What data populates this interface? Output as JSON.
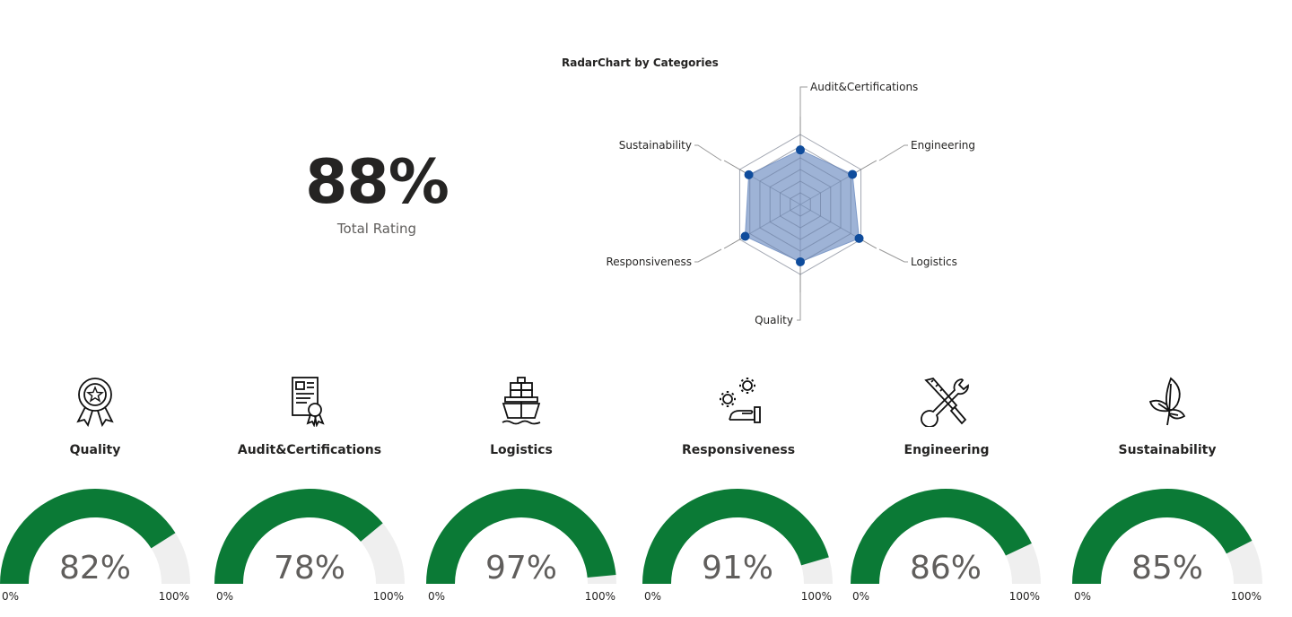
{
  "kpi": {
    "value": "88%",
    "label": "Total Rating"
  },
  "radar": {
    "title": "RadarChart by Categories",
    "axes": [
      "Audit&Certifications",
      "Engineering",
      "Logistics",
      "Quality",
      "Responsiveness",
      "Sustainability"
    ],
    "values": [
      78,
      86,
      97,
      82,
      91,
      85
    ],
    "max": 100,
    "rings": 6,
    "fill_color": "#7E9AC8",
    "point_color": "#0F4C9C"
  },
  "chart_data": [
    {
      "type": "radar",
      "title": "RadarChart by Categories",
      "categories": [
        "Audit&Certifications",
        "Engineering",
        "Logistics",
        "Quality",
        "Responsiveness",
        "Sustainability"
      ],
      "values": [
        78,
        86,
        97,
        82,
        91,
        85
      ],
      "ylim": [
        0,
        100
      ],
      "grid": true
    },
    {
      "type": "gauge",
      "categories": [
        "Quality",
        "Audit&Certifications",
        "Logistics",
        "Responsiveness",
        "Engineering",
        "Sustainability"
      ],
      "values": [
        82,
        78,
        97,
        91,
        86,
        85
      ],
      "ylim": [
        0,
        100
      ]
    }
  ],
  "categories": [
    {
      "label": "Quality",
      "icon": "award-ribbon-icon",
      "value": 82,
      "display": "82%",
      "min": "0%",
      "max": "100%"
    },
    {
      "label": "Audit&Certifications",
      "icon": "certificate-icon",
      "value": 78,
      "display": "78%",
      "min": "0%",
      "max": "100%"
    },
    {
      "label": "Logistics",
      "icon": "cargo-ship-icon",
      "value": 97,
      "display": "97%",
      "min": "0%",
      "max": "100%"
    },
    {
      "label": "Responsiveness",
      "icon": "hand-gears-icon",
      "value": 91,
      "display": "91%",
      "min": "0%",
      "max": "100%"
    },
    {
      "label": "Engineering",
      "icon": "wrench-screwdriver-icon",
      "value": 86,
      "display": "86%",
      "min": "0%",
      "max": "100%"
    },
    {
      "label": "Sustainability",
      "icon": "leaf-icon",
      "value": 85,
      "display": "85%",
      "min": "0%",
      "max": "100%"
    }
  ],
  "colors": {
    "gauge_fill": "#0B7A36",
    "gauge_track": "#EFEFEF",
    "gauge_text": "#605E5C"
  }
}
